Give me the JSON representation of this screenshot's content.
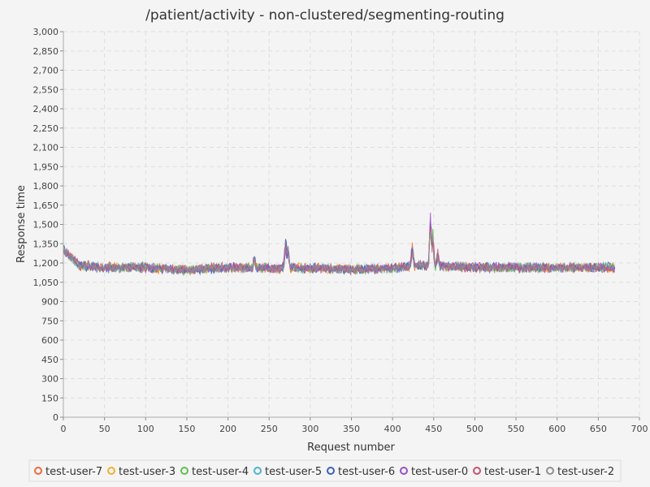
{
  "chart_data": {
    "type": "line",
    "title": "/patient/activity - non-clustered/segmenting-routing",
    "xlabel": "Request number",
    "ylabel": "Response time",
    "xlim": [
      0,
      700
    ],
    "ylim": [
      0,
      3000
    ],
    "x_ticks": [
      "0",
      "50",
      "100",
      "150",
      "200",
      "250",
      "300",
      "350",
      "400",
      "450",
      "500",
      "550",
      "600",
      "650",
      "700"
    ],
    "y_ticks": [
      "0",
      "150",
      "300",
      "450",
      "600",
      "750",
      "900",
      "1,050",
      "1,200",
      "1,350",
      "1,500",
      "1,650",
      "1,800",
      "1,950",
      "2,100",
      "2,250",
      "2,400",
      "2,550",
      "2,700",
      "2,850",
      "3,000"
    ],
    "grid": true,
    "legend_position": "bottom",
    "x_count": 670,
    "baseline": [
      [
        0,
        1310
      ],
      [
        8,
        1250
      ],
      [
        20,
        1180
      ],
      [
        50,
        1165
      ],
      [
        100,
        1165
      ],
      [
        150,
        1145
      ],
      [
        200,
        1165
      ],
      [
        250,
        1160
      ],
      [
        300,
        1160
      ],
      [
        350,
        1150
      ],
      [
        400,
        1160
      ],
      [
        430,
        1180
      ],
      [
        460,
        1175
      ],
      [
        500,
        1165
      ],
      [
        550,
        1165
      ],
      [
        600,
        1160
      ],
      [
        650,
        1165
      ],
      [
        670,
        1160
      ]
    ],
    "spikes": [
      {
        "x": 232,
        "y": 1270
      },
      {
        "x": 270,
        "y": 1395
      },
      {
        "x": 273,
        "y": 1330
      },
      {
        "x": 424,
        "y": 1370
      },
      {
        "x": 446,
        "y": 1580
      },
      {
        "x": 449,
        "y": 1430
      },
      {
        "x": 455,
        "y": 1280
      }
    ],
    "series": [
      {
        "name": "test-user-7",
        "color": "#ef6a3a"
      },
      {
        "name": "test-user-3",
        "color": "#f0b030"
      },
      {
        "name": "test-user-4",
        "color": "#5fbf50"
      },
      {
        "name": "test-user-5",
        "color": "#4fb3c8"
      },
      {
        "name": "test-user-6",
        "color": "#3d5fc4"
      },
      {
        "name": "test-user-0",
        "color": "#9a4fc8"
      },
      {
        "name": "test-user-1",
        "color": "#c85070"
      },
      {
        "name": "test-user-2",
        "color": "#909090"
      }
    ]
  }
}
